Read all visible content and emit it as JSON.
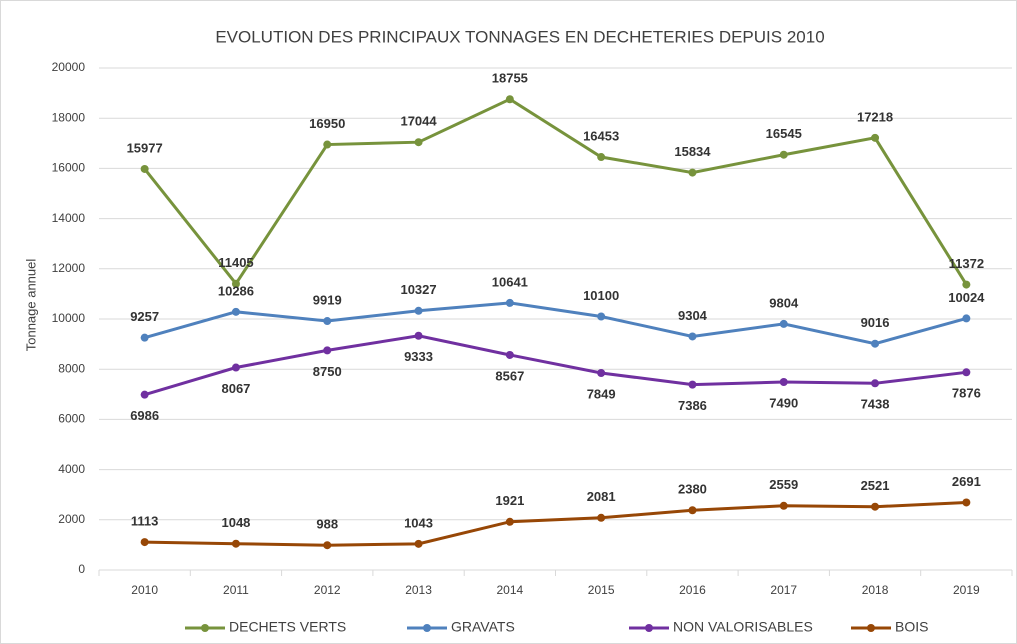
{
  "chart_data": {
    "type": "line",
    "title": "EVOLUTION DES  PRINCIPAUX TONNAGES EN DECHETERIES DEPUIS 2010",
    "y_label": "Tonnage annuel",
    "categories": [
      "2010",
      "2011",
      "2012",
      "2013",
      "2014",
      "2015",
      "2016",
      "2017",
      "2018",
      "2019"
    ],
    "series": [
      {
        "name": "DECHETS VERTS",
        "color": "#77933c",
        "values": [
          15977,
          11405,
          16950,
          17044,
          18755,
          16453,
          15834,
          16545,
          17218,
          11372
        ]
      },
      {
        "name": "GRAVATS",
        "color": "#4f81bd",
        "values": [
          9257,
          10286,
          9919,
          10327,
          10641,
          10100,
          9304,
          9804,
          9016,
          10024
        ]
      },
      {
        "name": "NON VALORISABLES",
        "color": "#7030a0",
        "values": [
          6986,
          8067,
          8750,
          9333,
          8567,
          7849,
          7386,
          7490,
          7438,
          7876
        ]
      },
      {
        "name": "BOIS",
        "color": "#974706",
        "values": [
          1113,
          1048,
          988,
          1043,
          1921,
          2081,
          2380,
          2559,
          2521,
          2691
        ]
      }
    ],
    "ylim": [
      0,
      20000
    ],
    "yticks": [
      0,
      2000,
      4000,
      6000,
      8000,
      10000,
      12000,
      14000,
      16000,
      18000,
      20000
    ],
    "grid": true,
    "legend": "bottom"
  }
}
